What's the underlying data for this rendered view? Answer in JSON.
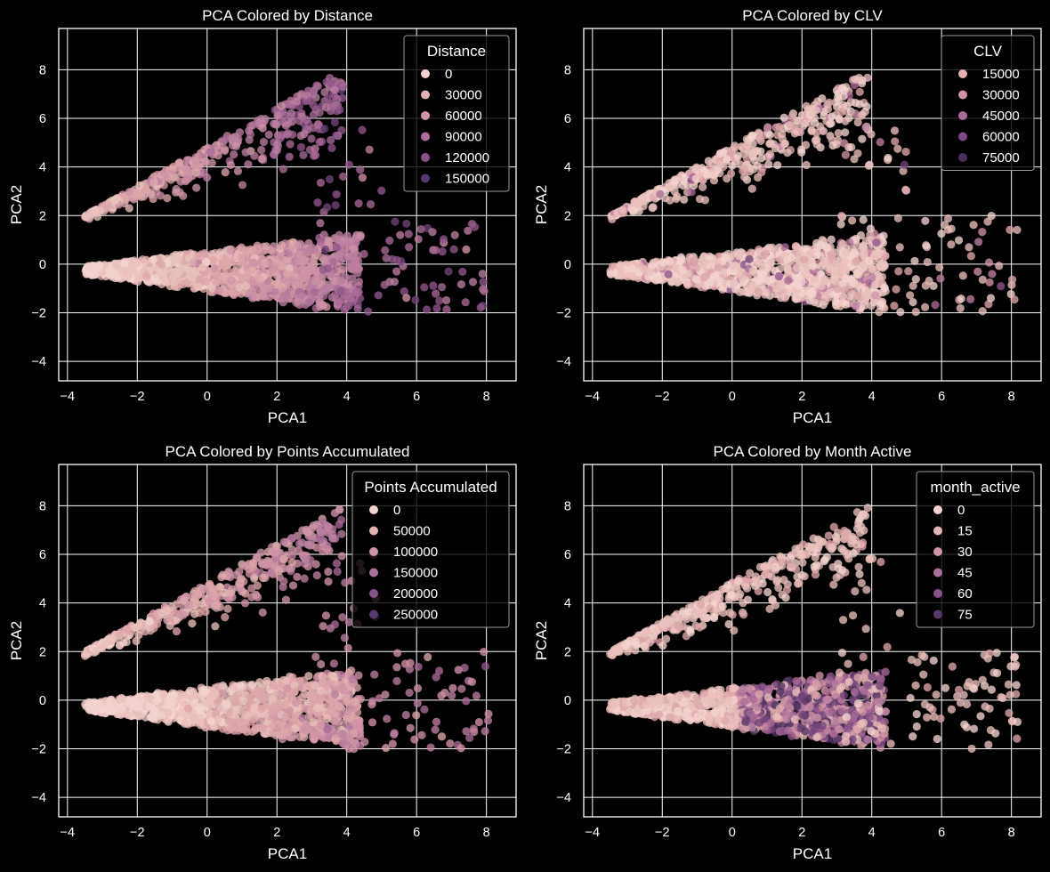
{
  "chart_data": [
    {
      "type": "scatter",
      "title": "PCA Colored by Distance",
      "xlabel": "PCA1",
      "ylabel": "PCA2",
      "xlim": [
        -4.25,
        8.85
      ],
      "ylim": [
        -4.8,
        9.7
      ],
      "xticks": [
        -4,
        -2,
        0,
        2,
        4,
        6,
        8
      ],
      "yticks": [
        -4,
        -2,
        0,
        2,
        4,
        6,
        8
      ],
      "grid": true,
      "legend": {
        "title": "Distance",
        "placement": "top-right",
        "labels": [
          "0",
          "30000",
          "60000",
          "90000",
          "120000",
          "150000"
        ],
        "colors": [
          "#f2d4cf",
          "#e3b2b2",
          "#cf93a6",
          "#ad709a",
          "#855289",
          "#573a6d"
        ]
      }
    },
    {
      "type": "scatter",
      "title": "PCA Colored by CLV",
      "xlabel": "PCA1",
      "ylabel": "PCA2",
      "xlim": [
        -4.25,
        8.85
      ],
      "ylim": [
        -4.8,
        9.7
      ],
      "xticks": [
        -4,
        -2,
        0,
        2,
        4,
        6,
        8
      ],
      "yticks": [
        -4,
        -2,
        0,
        2,
        4,
        6,
        8
      ],
      "grid": true,
      "legend": {
        "title": "CLV",
        "placement": "top-right",
        "labels": [
          "15000",
          "30000",
          "45000",
          "60000",
          "75000"
        ],
        "colors": [
          "#e3b2b2",
          "#cf93a6",
          "#a86a96",
          "#7a4b82",
          "#4a3159"
        ]
      }
    },
    {
      "type": "scatter",
      "title": "PCA Colored by Points Accumulated",
      "xlabel": "PCA1",
      "ylabel": "PCA2",
      "xlim": [
        -4.25,
        8.85
      ],
      "ylim": [
        -4.8,
        9.7
      ],
      "xticks": [
        -4,
        -2,
        0,
        2,
        4,
        6,
        8
      ],
      "yticks": [
        -4,
        -2,
        0,
        2,
        4,
        6,
        8
      ],
      "grid": true,
      "legend": {
        "title": "Points Accumulated",
        "placement": "top-right",
        "labels": [
          "0",
          "50000",
          "100000",
          "150000",
          "200000",
          "250000"
        ],
        "colors": [
          "#f2d4cf",
          "#e3b2b2",
          "#cf93a6",
          "#ad709a",
          "#855289",
          "#573a6d"
        ]
      }
    },
    {
      "type": "scatter",
      "title": "PCA Colored by Month Active",
      "xlabel": "PCA1",
      "ylabel": "PCA2",
      "xlim": [
        -4.25,
        8.85
      ],
      "ylim": [
        -4.8,
        9.7
      ],
      "xticks": [
        -4,
        -2,
        0,
        2,
        4,
        6,
        8
      ],
      "yticks": [
        -4,
        -2,
        0,
        2,
        4,
        6,
        8
      ],
      "grid": true,
      "legend": {
        "title": "month_active",
        "placement": "top-right",
        "labels": [
          "0",
          "15",
          "30",
          "45",
          "60",
          "75"
        ],
        "colors": [
          "#f2d4cf",
          "#e3b2b2",
          "#cf93a6",
          "#ad709a",
          "#855289",
          "#573a6d"
        ]
      }
    }
  ]
}
